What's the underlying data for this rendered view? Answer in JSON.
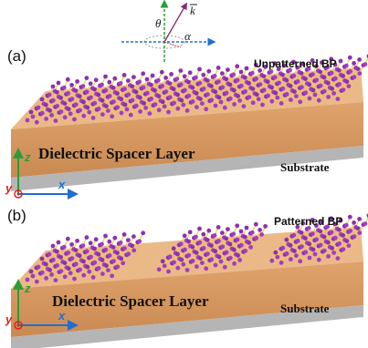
{
  "inset": {
    "theta": "θ",
    "k": "k",
    "alpha": "α"
  },
  "panels": [
    {
      "label": "(a)",
      "title": "Unpatterned BP",
      "layer": "Dielectric Spacer Layer",
      "substrate": "Substrate",
      "axes": {
        "z": "z",
        "x": "x",
        "y": "y"
      }
    },
    {
      "label": "(b)",
      "title": "Patterned BP",
      "layer": "Dielectric Spacer Layer",
      "substrate": "Substrate",
      "axes": {
        "z": "z",
        "x": "x",
        "y": "y"
      }
    }
  ]
}
